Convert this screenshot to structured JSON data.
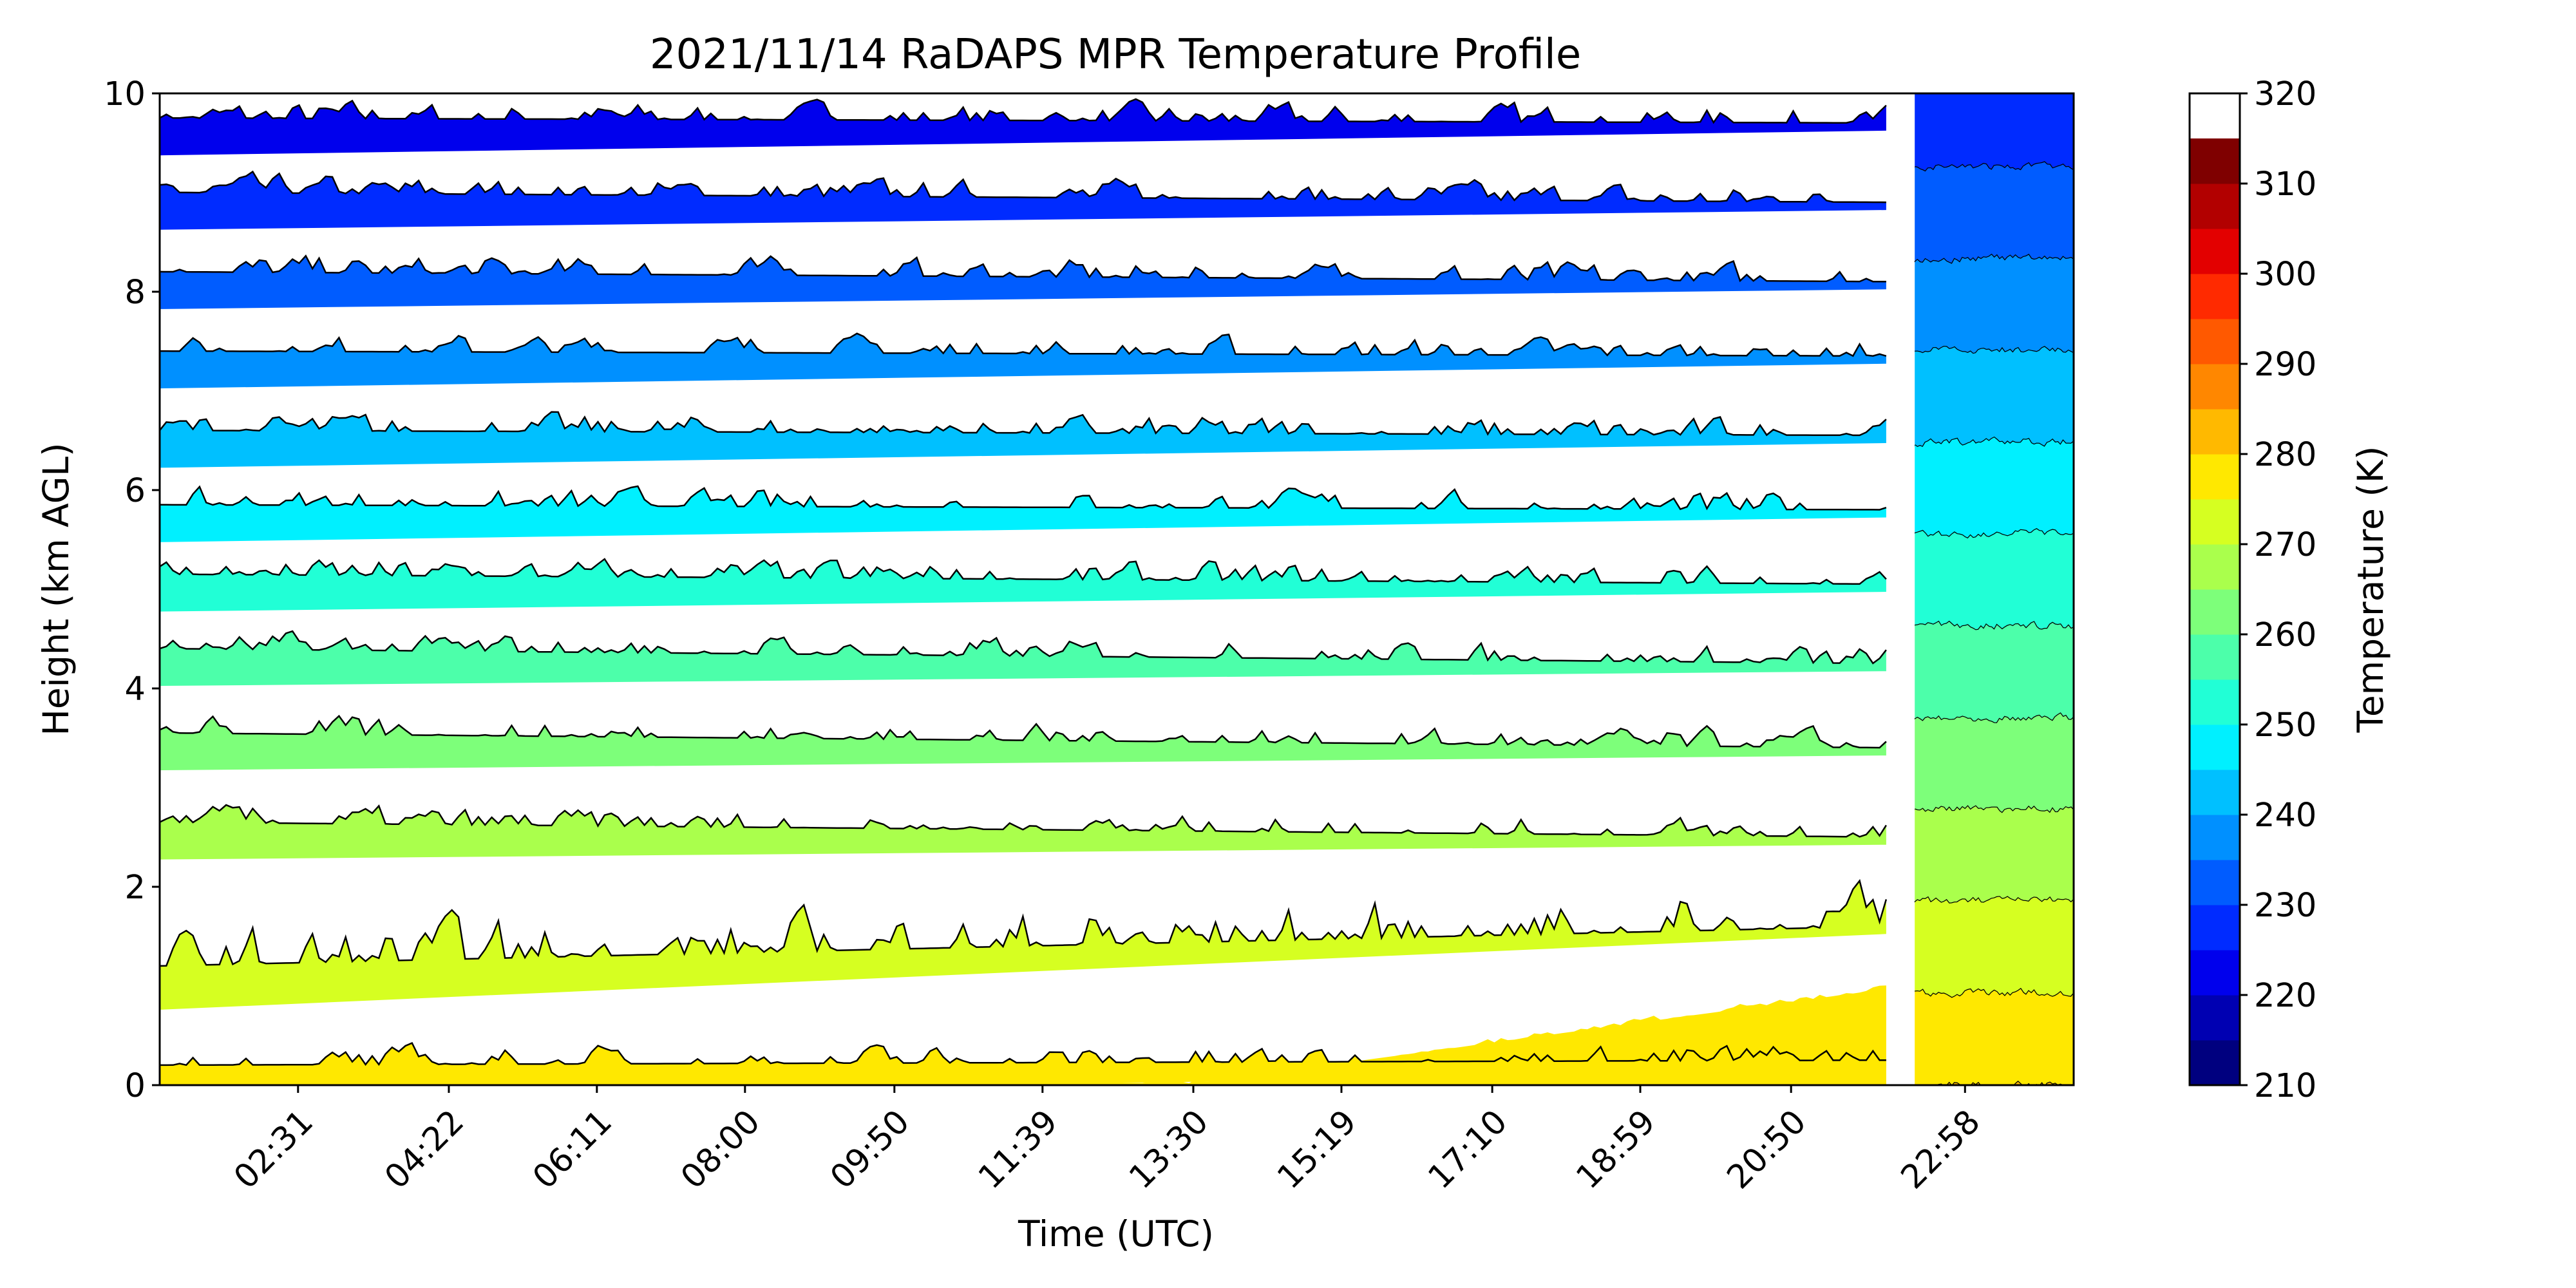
{
  "chart_data": {
    "type": "heatmap",
    "subtype": "filled-contour",
    "title": "2021/11/14 RaDAPS MPR Temperature Profile",
    "xlabel": "Time (UTC)",
    "ylabel": "Height (km AGL)",
    "x_tick_labels": [
      "02:31",
      "04:22",
      "06:11",
      "08:00",
      "09:50",
      "11:39",
      "13:30",
      "15:19",
      "17:10",
      "18:59",
      "20:50",
      "22:58"
    ],
    "x_tick_hours": [
      2.517,
      4.367,
      6.183,
      8.0,
      9.833,
      11.65,
      13.5,
      15.317,
      17.167,
      18.983,
      20.833,
      22.967
    ],
    "xlim_hours": [
      0.82,
      24.3
    ],
    "y_ticks": [
      0,
      2,
      4,
      6,
      8,
      10
    ],
    "ylim": [
      0,
      10
    ],
    "data_gap_hours": [
      22.0,
      22.35
    ],
    "colorbar": {
      "label": "Temperature (K)",
      "levels": [
        210,
        215,
        220,
        225,
        230,
        235,
        240,
        245,
        250,
        255,
        260,
        265,
        270,
        275,
        280,
        285,
        290,
        295,
        300,
        305,
        310,
        315,
        320
      ],
      "tick_values": [
        210,
        220,
        230,
        240,
        250,
        260,
        270,
        280,
        290,
        300,
        310,
        320
      ],
      "tick_labels": [
        "210",
        "220",
        "230",
        "240",
        "250",
        "260",
        "270",
        "280",
        "290",
        "300",
        "310",
        "320"
      ],
      "colors": [
        "#00007f",
        "#0000b2",
        "#0000ed",
        "#002bff",
        "#005cff",
        "#0090ff",
        "#00c0ff",
        "#00f0ff",
        "#21ffd6",
        "#4cffaa",
        "#7dff7a",
        "#aaff4c",
        "#d6ff21",
        "#ffe800",
        "#ffb900",
        "#ff8700",
        "#ff5900",
        "#ff2a00",
        "#e30000",
        "#b20000",
        "#7f0000"
      ]
    },
    "isotherm_heights_start_km": [
      9.7,
      8.95,
      8.15,
      7.35,
      6.55,
      5.8,
      5.1,
      4.35,
      3.5,
      2.6,
      1.15,
      0.15
    ],
    "isotherm_heights_end_km": [
      9.65,
      8.85,
      8.05,
      7.3,
      6.5,
      5.75,
      5.0,
      4.2,
      3.35,
      2.45,
      1.55,
      0.2
    ],
    "isotherm_temperatures_K": [
      225,
      230,
      235,
      240,
      245,
      250,
      255,
      260,
      265,
      270,
      275,
      280
    ],
    "surface_temperature_range_K": [
      275,
      285
    ]
  }
}
